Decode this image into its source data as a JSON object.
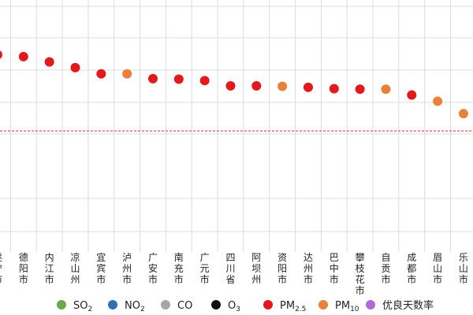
{
  "chart_data": {
    "type": "scatter",
    "title": "",
    "xlabel": "",
    "ylabel": "",
    "ylim": [
      55,
      102
    ],
    "grid": true,
    "reference_line": {
      "value": 76,
      "color": "#e8243c",
      "style": "dashed"
    },
    "categories": [
      "遂宁市",
      "德阳市",
      "内江市",
      "凉山州",
      "宜宾市",
      "泸州市",
      "广安市",
      "南充市",
      "广元市",
      "四川省",
      "阿坝州",
      "资阳市",
      "达州市",
      "巴中市",
      "攀枝花市",
      "自贡市",
      "成都市",
      "眉山市",
      "乐山市"
    ],
    "values": [
      91.9,
      91.5,
      90.4,
      89.2,
      87.9,
      87.9,
      86.9,
      86.8,
      86.5,
      85.4,
      85.4,
      85.3,
      85.1,
      84.8,
      84.7,
      84.7,
      83.5,
      82.2,
      79.6
    ],
    "point_pollutant": [
      "PM2.5",
      "PM2.5",
      "PM2.5",
      "PM2.5",
      "PM2.5",
      "PM10",
      "PM2.5",
      "PM2.5",
      "PM2.5",
      "PM2.5",
      "PM2.5",
      "PM10",
      "PM2.5",
      "PM2.5",
      "PM2.5",
      "PM10",
      "PM2.5",
      "PM10",
      "PM10"
    ],
    "legend": [
      {
        "key": "SO2",
        "base": "SO",
        "sub": "2",
        "color": "#6aa84f"
      },
      {
        "key": "NO2",
        "base": "NO",
        "sub": "2",
        "color": "#2f6eba"
      },
      {
        "key": "CO",
        "base": "CO",
        "sub": "",
        "color": "#a6a6a6"
      },
      {
        "key": "O3",
        "base": "O",
        "sub": "3",
        "color": "#111111"
      },
      {
        "key": "PM2.5",
        "base": "PM",
        "sub": "2.5",
        "color": "#e3191c"
      },
      {
        "key": "PM10",
        "base": "PM",
        "sub": "10",
        "color": "#e8823a"
      },
      {
        "key": "rate",
        "base": "优良天数率",
        "sub": "",
        "color": "#b36ad6"
      }
    ]
  }
}
